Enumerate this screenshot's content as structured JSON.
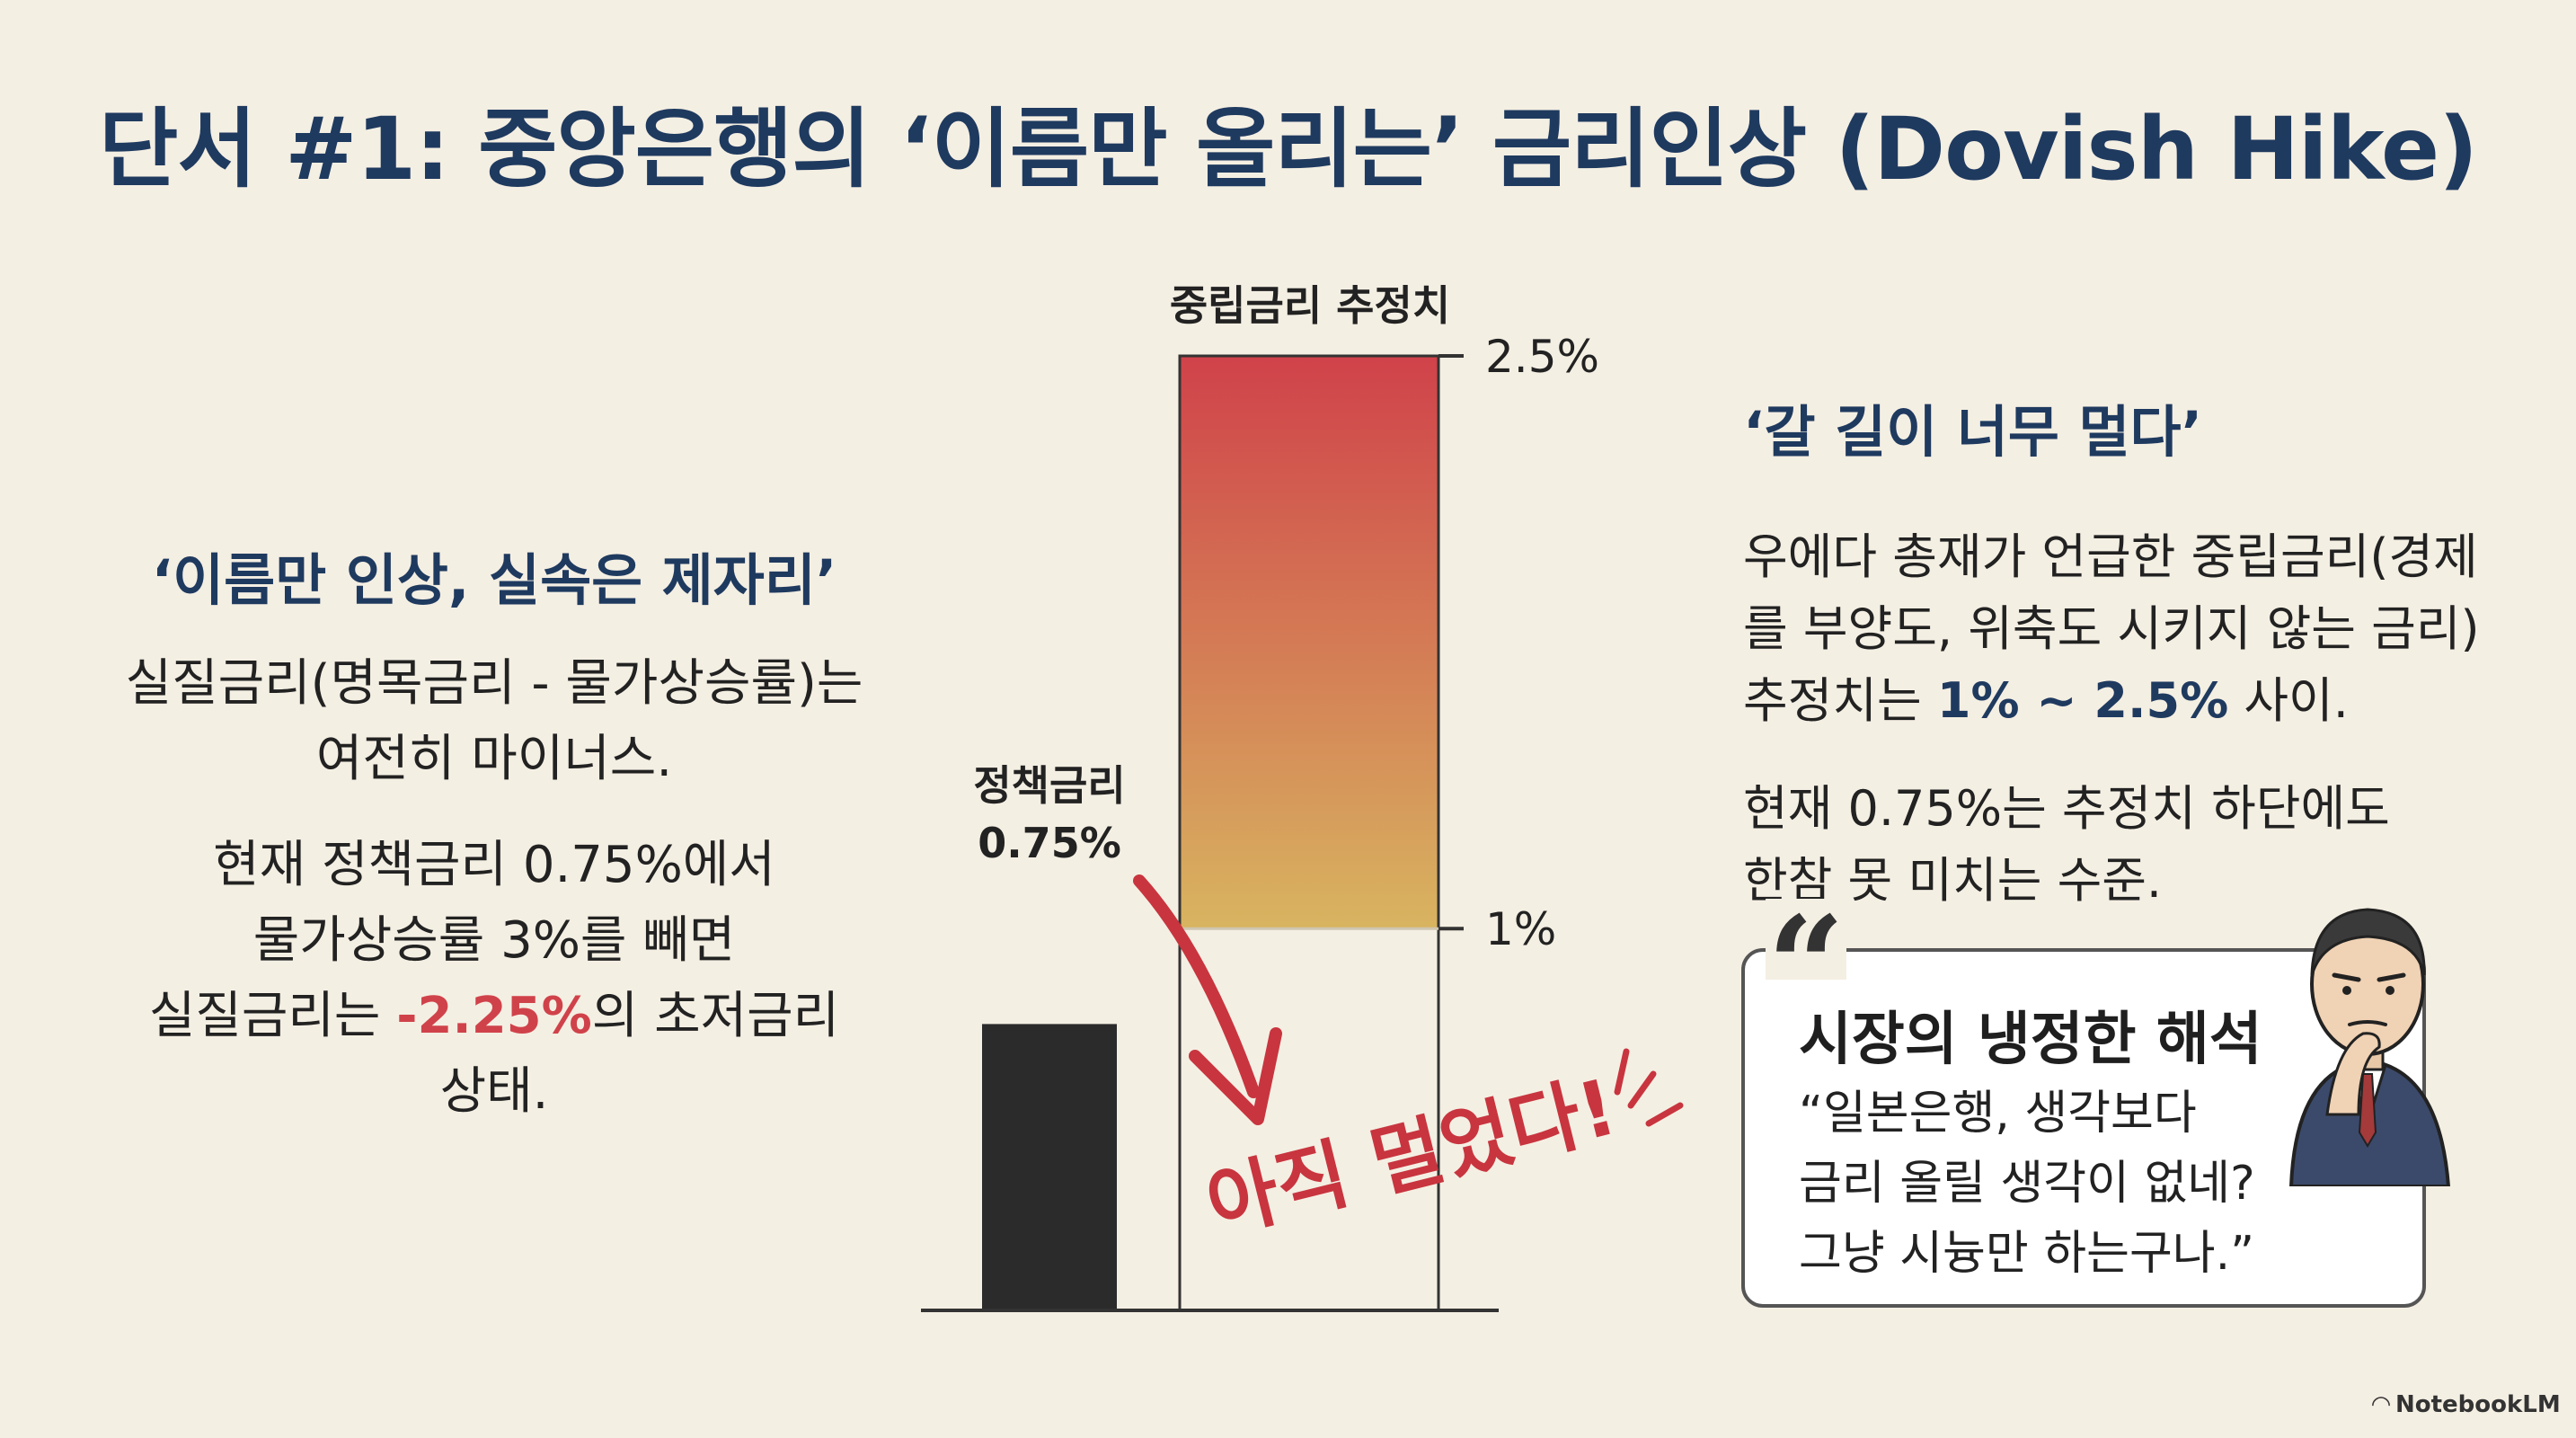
{
  "title": "단서 #1: 중앙은행의 ‘이름만 올리는’ 금리인상 (Dovish Hike)",
  "left": {
    "heading": "‘이름만 인상, 실속은 제자리’",
    "p1_line1": "실질금리(명목금리 - 물가상승률)는",
    "p1_line2": "여전히 마이너스.",
    "p2_line1": "현재 정책금리 0.75%에서",
    "p2_line2": "물가상승률 3%를 빼면",
    "p2_line3_pre": "실질금리는 ",
    "p2_line3_neg": "-2.25%",
    "p2_line3_post": "의 초저금리",
    "p2_line4": "상태."
  },
  "right": {
    "heading": "‘갈 길이 너무 멀다’",
    "p1_line1": "우에다 총재가 언급한 중립금리(경제",
    "p1_line2": "를 부양도, 위축도 시키지 않는 금리)",
    "p1_line3_pre": "추정치는 ",
    "p1_line3_hl": "1% ~ 2.5%",
    "p1_line3_post": " 사이.",
    "p2_line1": "현재 0.75%는 추정치 하단에도",
    "p2_line2": "한참 못 미치는 수준."
  },
  "quote": {
    "mark": "“",
    "heading": "시장의 냉정한 해석",
    "line1": "“일본은행, 생각보다",
    "line2": "금리 올릴 생각이 없네?",
    "line3": "그냥 시늉만 하는구나.”"
  },
  "brand": "NotebookLM",
  "chart_data": {
    "type": "bar",
    "categories": [
      "정책금리",
      "중립금리 추정치"
    ],
    "policy_rate": {
      "label_line1": "정책금리",
      "label_line2": "0.75%",
      "value": 0.75,
      "color": "#2b2b2b"
    },
    "neutral_range": {
      "label": "중립금리 추정치",
      "low": 1.0,
      "high": 2.5,
      "color_top": "#d0424a",
      "color_bottom": "#d8b460"
    },
    "ticks": [
      {
        "value": 2.5,
        "label": "2.5%"
      },
      {
        "value": 1.0,
        "label": "1%"
      }
    ],
    "ylim": [
      0,
      2.5
    ],
    "annotation": "아직 멀었다!",
    "annotation_color": "#c8353f"
  }
}
